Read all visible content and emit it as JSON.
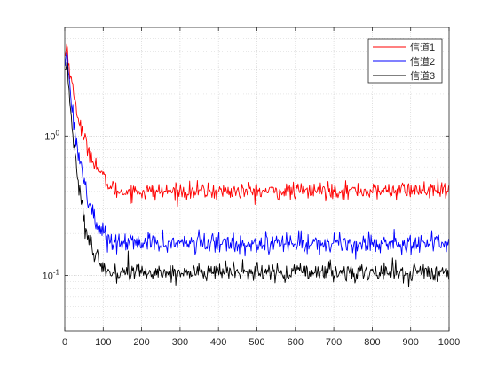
{
  "chart_data": {
    "type": "line",
    "title": "",
    "xlabel": "",
    "ylabel": "",
    "xlim": [
      0,
      1000
    ],
    "ylim": [
      0.04,
      6
    ],
    "yscale": "log",
    "grid": true,
    "minor_grid": true,
    "legend_position": "top-right",
    "x_ticks": [
      "0",
      "100",
      "200",
      "300",
      "400",
      "500",
      "600",
      "700",
      "800",
      "900",
      "1000"
    ],
    "y_ticks": [
      {
        "value": 0.1,
        "base": "10",
        "exp": "-1"
      },
      {
        "value": 1,
        "base": "10",
        "exp": "0"
      }
    ],
    "series": [
      {
        "name": "信道1",
        "color": "#ff0000",
        "x": [
          0,
          5,
          10,
          20,
          30,
          40,
          50,
          60,
          70,
          80,
          90,
          100,
          110,
          120,
          130,
          140,
          150,
          200,
          300,
          400,
          500,
          600,
          700,
          800,
          900,
          1000
        ],
        "y": [
          3.5,
          4.6,
          3.4,
          2.2,
          1.6,
          1.2,
          0.95,
          0.82,
          0.72,
          0.63,
          0.56,
          0.5,
          0.46,
          0.43,
          0.41,
          0.4,
          0.4,
          0.4,
          0.4,
          0.4,
          0.4,
          0.4,
          0.41,
          0.4,
          0.41,
          0.4
        ]
      },
      {
        "name": "信道2",
        "color": "#0000ff",
        "x": [
          0,
          5,
          10,
          20,
          30,
          40,
          50,
          60,
          70,
          80,
          90,
          100,
          110,
          120,
          130,
          140,
          150,
          200,
          300,
          400,
          500,
          600,
          700,
          800,
          900,
          1000
        ],
        "y": [
          3.2,
          4.3,
          2.8,
          1.5,
          0.95,
          0.65,
          0.48,
          0.36,
          0.29,
          0.25,
          0.22,
          0.2,
          0.185,
          0.175,
          0.17,
          0.17,
          0.17,
          0.17,
          0.17,
          0.17,
          0.17,
          0.17,
          0.17,
          0.17,
          0.17,
          0.17
        ]
      },
      {
        "name": "信道3",
        "color": "#000000",
        "x": [
          0,
          5,
          10,
          20,
          30,
          40,
          50,
          60,
          70,
          80,
          90,
          100,
          110,
          120,
          130,
          140,
          150,
          200,
          300,
          400,
          500,
          600,
          700,
          800,
          900,
          1000
        ],
        "y": [
          2.8,
          3.8,
          2.3,
          1.05,
          0.6,
          0.38,
          0.26,
          0.19,
          0.15,
          0.13,
          0.12,
          0.112,
          0.108,
          0.105,
          0.105,
          0.105,
          0.105,
          0.105,
          0.105,
          0.105,
          0.105,
          0.105,
          0.105,
          0.105,
          0.105,
          0.105
        ]
      }
    ]
  }
}
